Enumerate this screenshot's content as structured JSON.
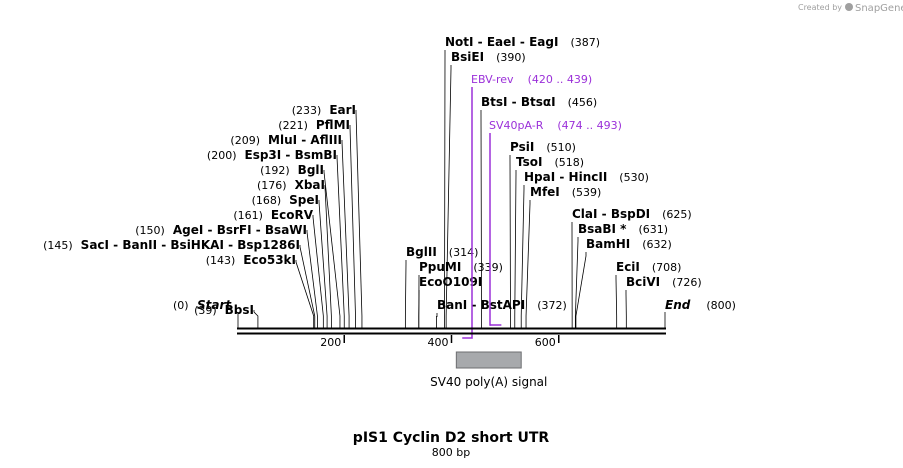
{
  "header": {
    "credit_prefix": "Created by",
    "brand": "SnapGene",
    "brand_color": "#a0a0a0"
  },
  "plasmid": {
    "name": "pIS1 Cyclin D2 short UTR",
    "length_label": "800 bp",
    "length_bp": 800
  },
  "colors": {
    "backbone": "#000000",
    "primer": "#9b30d9",
    "feature_fill": "#a7a9ac",
    "feature_stroke": "#6d6e71"
  },
  "ticks": [
    {
      "value": 200,
      "label": "200"
    },
    {
      "value": 400,
      "label": "400"
    },
    {
      "value": 600,
      "label": "600"
    }
  ],
  "ends": [
    {
      "name": "Start",
      "pos": "(0)",
      "bp": 0,
      "kind": "start"
    },
    {
      "name": "End",
      "pos": "(800)",
      "bp": 800,
      "kind": "end"
    }
  ],
  "sites": [
    {
      "names": [
        "NotI",
        "EaeI",
        "EagI"
      ],
      "pos": "(387)",
      "bp": 387,
      "side": "right"
    },
    {
      "names": [
        "BsiEI"
      ],
      "pos": "(390)",
      "bp": 390,
      "side": "right"
    },
    {
      "names": [
        "BtsI",
        "BtsαI"
      ],
      "pos": "(456)",
      "bp": 456,
      "side": "right"
    },
    {
      "names": [
        "PsiI"
      ],
      "pos": "(510)",
      "bp": 510,
      "side": "right"
    },
    {
      "names": [
        "TsoI"
      ],
      "pos": "(518)",
      "bp": 518,
      "side": "right"
    },
    {
      "names": [
        "HpaI",
        "HincII"
      ],
      "pos": "(530)",
      "bp": 530,
      "side": "right"
    },
    {
      "names": [
        "MfeI"
      ],
      "pos": "(539)",
      "bp": 539,
      "side": "right"
    },
    {
      "names": [
        "ClaI",
        "BspDI"
      ],
      "pos": "(625)",
      "bp": 625,
      "side": "right"
    },
    {
      "names": [
        "BsaBI *"
      ],
      "pos": "(631)",
      "bp": 631,
      "side": "right"
    },
    {
      "names": [
        "BamHI"
      ],
      "pos": "(632)",
      "bp": 632,
      "side": "right"
    },
    {
      "names": [
        "EciI"
      ],
      "pos": "(708)",
      "bp": 708,
      "side": "right"
    },
    {
      "names": [
        "BciVI"
      ],
      "pos": "(726)",
      "bp": 726,
      "side": "right"
    },
    {
      "names": [
        "BglII"
      ],
      "pos": "(314)",
      "bp": 314,
      "side": "right"
    },
    {
      "names": [
        "PpuMI"
      ],
      "pos": "(339)",
      "bp": 339,
      "side": "right"
    },
    {
      "names": [
        "EcoO109I"
      ],
      "pos": "",
      "bp": 339,
      "side": "right"
    },
    {
      "names": [
        "BanI",
        "BstAPI"
      ],
      "pos": "(372)",
      "bp": 372,
      "side": "right"
    },
    {
      "names": [
        "EarI"
      ],
      "pos": "(233)",
      "bp": 233,
      "side": "left"
    },
    {
      "names": [
        "PflMI"
      ],
      "pos": "(221)",
      "bp": 221,
      "side": "left"
    },
    {
      "names": [
        "MluI",
        "AflIII"
      ],
      "pos": "(209)",
      "bp": 209,
      "side": "left"
    },
    {
      "names": [
        "Esp3I",
        "BsmBI"
      ],
      "pos": "(200)",
      "bp": 200,
      "side": "left"
    },
    {
      "names": [
        "BglI"
      ],
      "pos": "(192)",
      "bp": 192,
      "side": "left"
    },
    {
      "names": [
        "XbaI"
      ],
      "pos": "(176)",
      "bp": 176,
      "side": "left"
    },
    {
      "names": [
        "SpeI"
      ],
      "pos": "(168)",
      "bp": 168,
      "side": "left"
    },
    {
      "names": [
        "EcoRV"
      ],
      "pos": "(161)",
      "bp": 161,
      "side": "left"
    },
    {
      "names": [
        "AgeI",
        "BsrFI",
        "BsaWI"
      ],
      "pos": "(150)",
      "bp": 150,
      "side": "left"
    },
    {
      "names": [
        "SacI",
        "BanII",
        "BsiHKAI",
        "Bsp1286I"
      ],
      "pos": "(145)",
      "bp": 145,
      "side": "left"
    },
    {
      "names": [
        "Eco53kI"
      ],
      "pos": "(143)",
      "bp": 143,
      "side": "left"
    },
    {
      "names": [
        "BbsI"
      ],
      "pos": "(39)",
      "bp": 39,
      "side": "left"
    }
  ],
  "primers": [
    {
      "name": "EBV-rev",
      "range": "(420 .. 439)",
      "start": 420,
      "end": 439,
      "direction": "reverse"
    },
    {
      "name": "SV40pA-R",
      "range": "(474 .. 493)",
      "start": 474,
      "end": 493,
      "direction": "reverse"
    }
  ],
  "features": [
    {
      "name": "SV40 poly(A) signal",
      "start": 409,
      "end": 530
    }
  ]
}
